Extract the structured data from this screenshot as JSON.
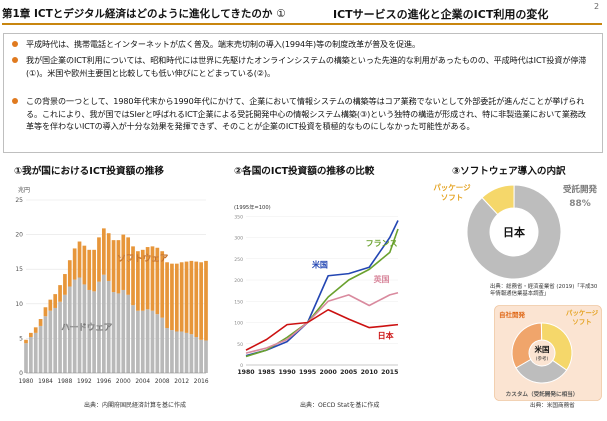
{
  "header": {
    "chapter": "第1章 ICTとデジタル経済はどのように進化してきたのか",
    "circle": "①",
    "title": "ICTサービスの進化と企業のICT利用の変化",
    "page": "2"
  },
  "summary": {
    "bullets": [
      "平成時代は、携帯電話とインターネットが広く普及。端末売切制の導入(1994年)等の制度改革が普及を促進。",
      "我が国企業のICT利用については、昭和時代には世界に先駆けたオンラインシステムの構築といった先進的な利用があったものの、平成時代はICT投資が停滞(①)。米国や欧州主要国と比較しても低い伸びにとどまっている(②)。",
      "この背景の一つとして、1980年代末から1990年代にかけて、企業において情報システムの構築等はコア業務でないとして外部委託が進んだことが挙げられる。これにより、我が国ではSIerと呼ばれるICT企業による受託開発中心の情報システム構築(③)という独特の構造が形成され、特に非製造業において業務改革等を伴わないICTの導入が十分な効果を発揮できず、そのことが企業のICT投資を積極的なものにしなかった可能性がある。"
    ],
    "colors": {
      "bullet": "#e07a1f",
      "rule": "#c8860f"
    }
  },
  "section1": {
    "title": "①我が国におけるICT投資額の推移",
    "source": "出典：内閣府国民経済計算を基に作成"
  },
  "section2": {
    "title": "②各国のICT投資額の推移の比較",
    "source": "出典：OECD Statを基に作成"
  },
  "section3": {
    "title": "③ソフトウェア導入の内訳",
    "source_japan": "出典：総務省・経済産業省 (2019)「平成30年情報通信業基本調査」",
    "source_us": "出典：米国商務省"
  },
  "chart_data": [
    {
      "type": "area",
      "title": "①我が国におけるICT投資額の推移",
      "ylabel": "兆円",
      "ylim": [
        0,
        25
      ],
      "yticks": [
        "0",
        "5",
        "10",
        "15",
        "20",
        "25"
      ],
      "xticks": [
        "1980",
        "1984",
        "1988",
        "1992",
        "1996",
        "2000",
        "2004",
        "2008",
        "2012",
        "2016"
      ],
      "series": [
        {
          "name": "ハードウェア",
          "x": [
            1980,
            1981,
            1982,
            1983,
            1984,
            1985,
            1986,
            1987,
            1988,
            1989,
            1990,
            1991,
            1992,
            1993,
            1994,
            1995,
            1996,
            1997,
            1998,
            1999,
            2000,
            2001,
            2002,
            2003,
            2004,
            2005,
            2006,
            2007,
            2008,
            2009,
            2010,
            2011,
            2012,
            2013,
            2014,
            2015,
            2016,
            2017
          ],
          "values": [
            4.3,
            5.2,
            5.8,
            6.8,
            8.2,
            9.0,
            9.4,
            10.3,
            11.3,
            12.5,
            13.5,
            13.8,
            12.8,
            12.0,
            11.8,
            13.2,
            14.2,
            13.3,
            11.7,
            11.5,
            12.0,
            11.3,
            9.8,
            9.0,
            9.0,
            9.2,
            9.0,
            8.5,
            8.0,
            6.5,
            6.2,
            6.0,
            6.0,
            5.8,
            5.6,
            5.2,
            4.8,
            4.7
          ]
        },
        {
          "name": "ソフトウェア",
          "x": [
            1980,
            1981,
            1982,
            1983,
            1984,
            1985,
            1986,
            1987,
            1988,
            1989,
            1990,
            1991,
            1992,
            1993,
            1994,
            1995,
            1996,
            1997,
            1998,
            1999,
            2000,
            2001,
            2002,
            2003,
            2004,
            2005,
            2006,
            2007,
            2008,
            2009,
            2010,
            2011,
            2012,
            2013,
            2014,
            2015,
            2016,
            2017
          ],
          "values": [
            0.5,
            0.6,
            0.8,
            1.0,
            1.3,
            1.6,
            2.0,
            2.4,
            3.0,
            3.8,
            4.5,
            5.2,
            5.6,
            5.8,
            6.0,
            6.4,
            6.7,
            6.9,
            7.5,
            7.7,
            8.0,
            8.3,
            8.5,
            8.6,
            8.8,
            9.0,
            9.3,
            9.6,
            9.6,
            9.5,
            9.6,
            9.8,
            10.0,
            10.3,
            10.6,
            10.9,
            11.2,
            11.5
          ]
        }
      ],
      "legend": [
        "ソフトウェア",
        "ハードウェア"
      ],
      "colors": {
        "hardware": "#b9b9b9",
        "software": "#e7963a"
      }
    },
    {
      "type": "line",
      "title": "②各国のICT投資額の推移の比較",
      "note": "(1995年=100)",
      "xticks": [
        "1980",
        "1985",
        "1990",
        "1995",
        "2000",
        "2005",
        "2010",
        "2015"
      ],
      "series": [
        {
          "name": "米国",
          "x": [
            1980,
            1985,
            1990,
            1995,
            2000,
            2005,
            2010,
            2015,
            2017
          ],
          "values": [
            22,
            35,
            55,
            100,
            210,
            215,
            230,
            300,
            340
          ]
        },
        {
          "name": "フランス",
          "x": [
            1980,
            1985,
            1990,
            1995,
            2000,
            2005,
            2010,
            2015,
            2017
          ],
          "values": [
            20,
            35,
            65,
            100,
            160,
            200,
            225,
            265,
            320
          ]
        },
        {
          "name": "英国",
          "x": [
            1980,
            1985,
            1990,
            1995,
            2000,
            2005,
            2010,
            2015,
            2017
          ],
          "values": [
            28,
            40,
            60,
            100,
            150,
            165,
            140,
            165,
            170
          ]
        },
        {
          "name": "日本",
          "x": [
            1980,
            1985,
            1990,
            1995,
            2000,
            2005,
            2010,
            2015,
            2017
          ],
          "values": [
            35,
            60,
            95,
            100,
            130,
            108,
            88,
            93,
            95
          ]
        }
      ],
      "colors": {
        "米国": "#2346b3",
        "フランス": "#6aa12e",
        "英国": "#d98a9e",
        "日本": "#cc1111"
      }
    },
    {
      "type": "pie",
      "title": "日本",
      "slices": [
        {
          "label": "パッケージソフト",
          "value": 12,
          "color": "#f5d76a"
        },
        {
          "label": "受託開発",
          "value": 88,
          "value_label": "88%",
          "color": "#bdbdbd"
        }
      ]
    },
    {
      "type": "pie",
      "title": "米国",
      "subtitle": "(参考)",
      "slices": [
        {
          "label": "自社開発",
          "value": 33,
          "color": "#f0a56b"
        },
        {
          "label": "パッケージソフト",
          "value": 35,
          "color": "#f5d76a"
        },
        {
          "label": "カスタム（受託開発に相当）",
          "value": 32,
          "color": "#bdbdbd"
        }
      ]
    }
  ]
}
